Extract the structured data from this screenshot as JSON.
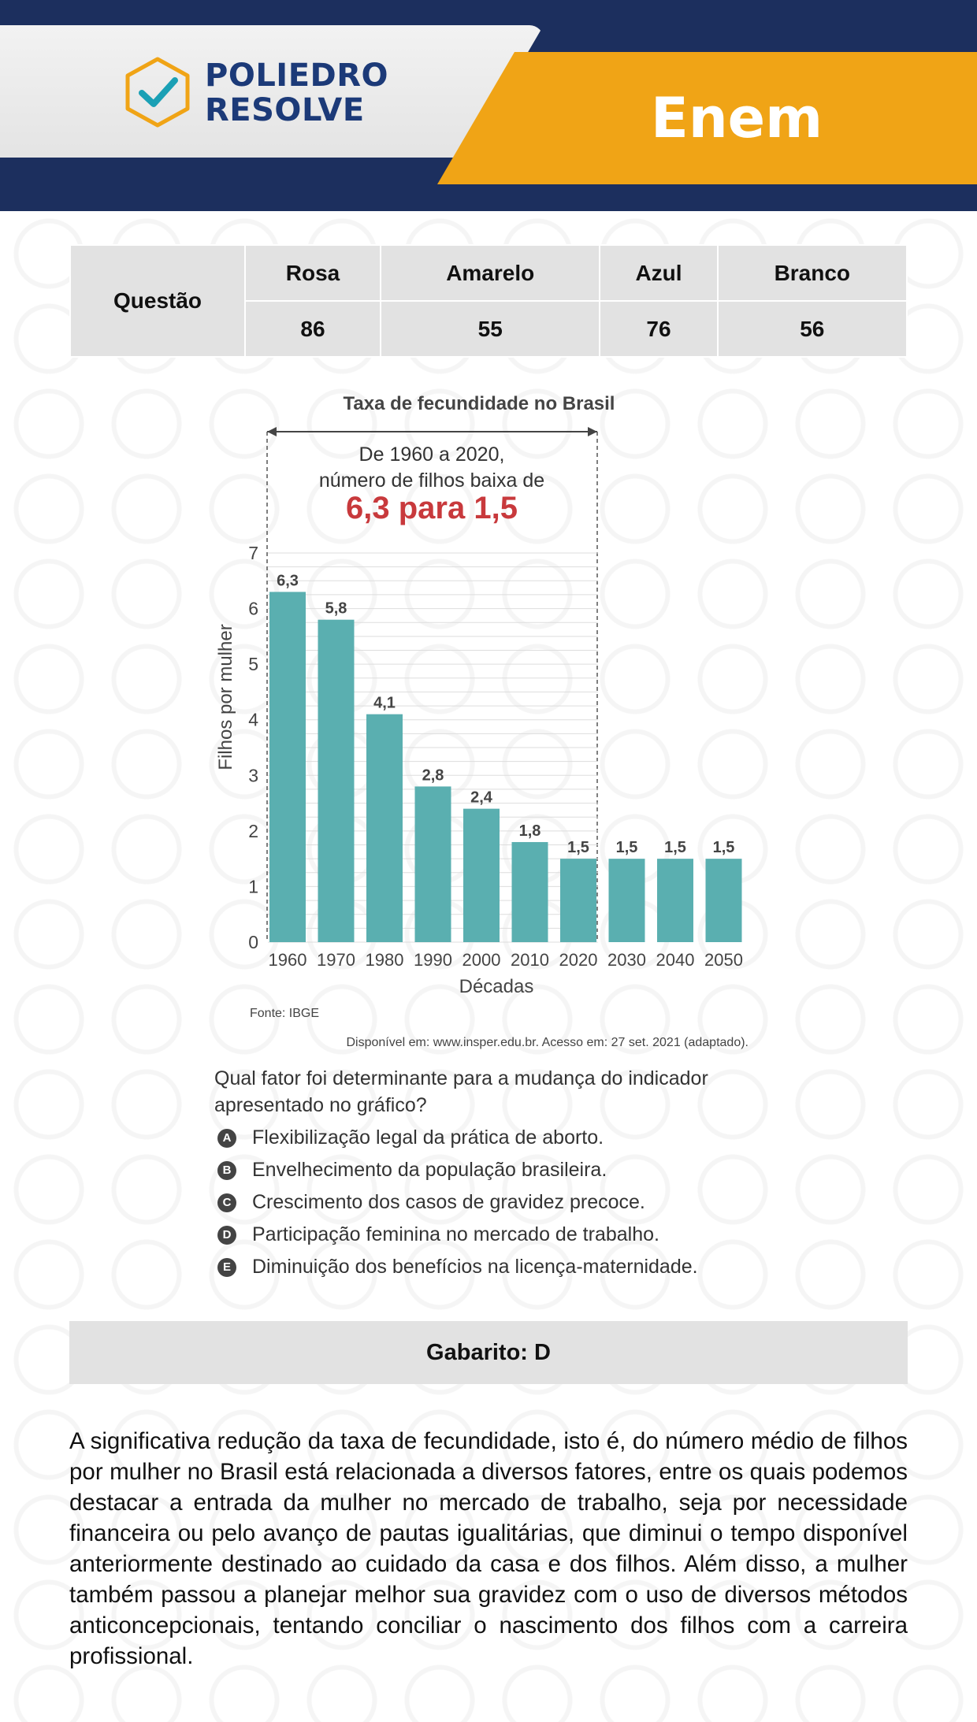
{
  "header": {
    "logo_line1": "POLIEDRO",
    "logo_line2": "RESOLVE",
    "exam": "Enem",
    "colors": {
      "navy": "#1c2f5e",
      "orange": "#f0a416",
      "logo_blue": "#1c3a78",
      "check_teal": "#1aa0b5"
    }
  },
  "table": {
    "row_label": "Questão",
    "columns": [
      "Rosa",
      "Amarelo",
      "Azul",
      "Branco"
    ],
    "values": [
      "86",
      "55",
      "76",
      "56"
    ]
  },
  "chart_data": {
    "type": "bar",
    "title": "Taxa de fecundidade no Brasil",
    "annotation_line1": "De 1960 a 2020,",
    "annotation_line2": "número de filhos baixa de",
    "annotation_highlight": "6,3 para 1,5",
    "categories": [
      "1960",
      "1970",
      "1980",
      "1990",
      "2000",
      "2010",
      "2020",
      "2030",
      "2040",
      "2050"
    ],
    "values": [
      6.3,
      5.8,
      4.1,
      2.8,
      2.4,
      1.8,
      1.5,
      1.5,
      1.5,
      1.5
    ],
    "value_labels": [
      "6,3",
      "5,8",
      "4,1",
      "2,8",
      "2,4",
      "1,8",
      "1,5",
      "1,5",
      "1,5",
      "1,5"
    ],
    "xlabel": "Décadas",
    "ylabel": "Filhos por mulher",
    "ylim": [
      0,
      7
    ],
    "yticks": [
      0,
      1,
      2,
      3,
      4,
      5,
      6,
      7
    ],
    "bracket_range": [
      "1960",
      "2020"
    ],
    "bar_color": "#5aafb0",
    "highlight_color": "#c8393c",
    "source": "Fonte: IBGE",
    "credit": "Disponível em: www.insper.edu.br. Acesso em: 27 set. 2021 (adaptado)."
  },
  "question": {
    "text": "Qual fator foi determinante para a mudança do indicador apresentado no gráfico?",
    "options": [
      {
        "letter": "A",
        "text": "Flexibilização legal da prática de aborto."
      },
      {
        "letter": "B",
        "text": "Envelhecimento da população brasileira."
      },
      {
        "letter": "C",
        "text": "Crescimento dos casos de gravidez precoce."
      },
      {
        "letter": "D",
        "text": "Participação feminina no mercado de trabalho."
      },
      {
        "letter": "E",
        "text": "Diminuição dos benefícios na licença-maternidade."
      }
    ]
  },
  "answer": {
    "label": "Gabarito: D"
  },
  "explanation": "A significativa redução da taxa de fecundidade, isto é, do número médio de filhos por mulher no Brasil está relacionada a diversos fatores, entre os quais podemos destacar a entrada da mulher no mercado de trabalho, seja por necessidade financeira ou pelo avanço de pautas igualitárias, que diminui o tempo disponível anteriormente destinado ao cuidado da casa e dos filhos. Além disso, a mulher também passou a planejar melhor sua gravidez com o uso de diversos métodos anticoncepcionais, tentando conciliar o nascimento dos filhos com a carreira profissional."
}
